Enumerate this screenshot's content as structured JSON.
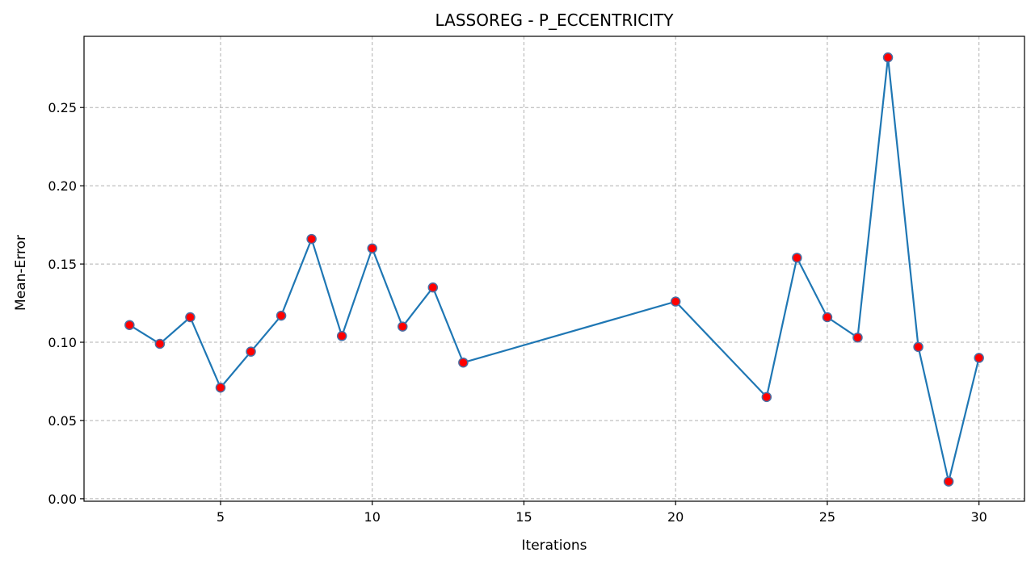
{
  "chart_data": {
    "type": "line",
    "title": "LASSOREG - P_ECCENTRICITY",
    "xlabel": "Iterations",
    "ylabel": "Mean-Error",
    "xlim": [
      0.5,
      31.5
    ],
    "ylim": [
      -0.0016,
      0.2955
    ],
    "grid": true,
    "x_ticks": [
      5,
      10,
      15,
      20,
      25,
      30
    ],
    "x_tick_labels": [
      "5",
      "10",
      "15",
      "20",
      "25",
      "30"
    ],
    "y_ticks": [
      0.0,
      0.05,
      0.1,
      0.15,
      0.2,
      0.25
    ],
    "y_tick_labels": [
      "0.00",
      "0.05",
      "0.10",
      "0.15",
      "0.20",
      "0.25"
    ],
    "series": [
      {
        "name": "Mean-Error",
        "line_color": "#1f77b4",
        "marker_face": "#ff0000",
        "marker_edge": "#4a6fa5",
        "x": [
          2,
          3,
          4,
          5,
          6,
          7,
          8,
          9,
          10,
          11,
          12,
          13,
          20,
          23,
          24,
          25,
          26,
          27,
          28,
          29,
          30
        ],
        "y": [
          0.111,
          0.099,
          0.116,
          0.071,
          0.094,
          0.117,
          0.166,
          0.104,
          0.16,
          0.11,
          0.135,
          0.087,
          0.126,
          0.065,
          0.154,
          0.116,
          0.103,
          0.282,
          0.097,
          0.011,
          0.09
        ]
      }
    ]
  }
}
